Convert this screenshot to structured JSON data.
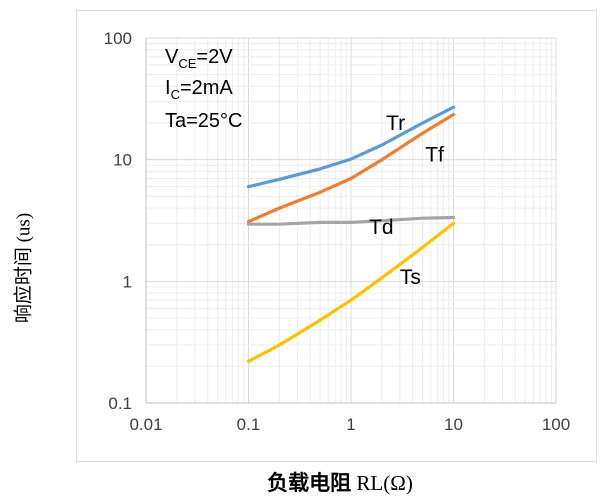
{
  "page": {
    "y_axis_title": "响应时间 (us)",
    "x_axis_title_main": "负载电阻",
    "x_axis_title_unit": "RL(Ω)"
  },
  "chart_data": {
    "type": "line",
    "title": "",
    "xlabel": "负载电阻 RL(Ω)",
    "ylabel": "响应时间 (us)",
    "x_scale": "log",
    "y_scale": "log",
    "xlim": [
      0.01,
      100
    ],
    "ylim": [
      0.1,
      100
    ],
    "x_ticks": [
      "0.01",
      "0.1",
      "1",
      "10",
      "100"
    ],
    "y_ticks": [
      "0.1",
      "1",
      "10",
      "100"
    ],
    "grid": "major and minor",
    "legend": "none",
    "conditions": {
      "vce_main": "V",
      "vce_sub": "CE",
      "vce_rest": "=2V",
      "ic_main": "I",
      "ic_sub": "C",
      "ic_rest": "=2mA",
      "ta": "Ta=25°C"
    },
    "series": [
      {
        "name": "Tr",
        "color": "#5b9bd5",
        "x": [
          0.1,
          0.2,
          0.5,
          1,
          2,
          5,
          10
        ],
        "y": [
          6.0,
          6.9,
          8.4,
          10.1,
          13.2,
          20.0,
          27.0
        ]
      },
      {
        "name": "Tf",
        "color": "#ed7d31",
        "x": [
          0.1,
          0.2,
          0.5,
          1,
          2,
          5,
          10
        ],
        "y": [
          3.1,
          4.0,
          5.4,
          7.0,
          10.0,
          16.5,
          23.5
        ]
      },
      {
        "name": "Td",
        "color": "#a5a5a5",
        "x": [
          0.1,
          0.2,
          0.5,
          1,
          2,
          5,
          10
        ],
        "y": [
          2.95,
          2.95,
          3.05,
          3.05,
          3.15,
          3.3,
          3.35
        ]
      },
      {
        "name": "Ts",
        "color": "#ffc000",
        "x": [
          0.1,
          0.2,
          0.5,
          1,
          2,
          5,
          10
        ],
        "y": [
          0.22,
          0.3,
          0.48,
          0.7,
          1.07,
          1.9,
          3.0
        ]
      }
    ],
    "series_labels": [
      {
        "text": "Tr",
        "x": 2.2,
        "y": 17.5
      },
      {
        "text": "Tf",
        "x": 5.3,
        "y": 9.7
      },
      {
        "text": "Td",
        "x": 1.5,
        "y": 2.45
      },
      {
        "text": "Ts",
        "x": 3.0,
        "y": 0.95
      }
    ]
  }
}
